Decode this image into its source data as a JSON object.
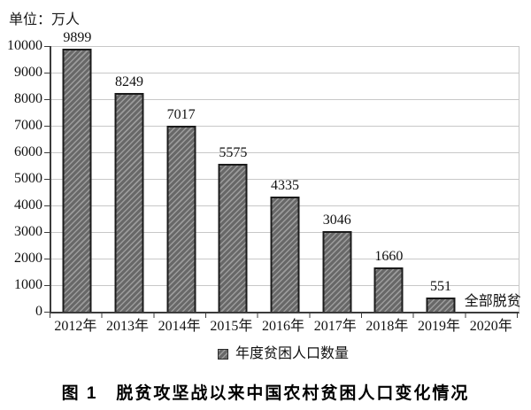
{
  "chart_data": {
    "type": "bar",
    "unit_label": "单位：万人",
    "caption": "图 1　脱贫攻坚战以来中国农村贫困人口变化情况",
    "categories": [
      "2012年",
      "2013年",
      "2014年",
      "2015年",
      "2016年",
      "2017年",
      "2018年",
      "2019年",
      "2020年"
    ],
    "values": [
      9899,
      8249,
      7017,
      5575,
      4335,
      3046,
      1660,
      551,
      0
    ],
    "value_labels": [
      "9899",
      "8249",
      "7017",
      "5575",
      "4335",
      "3046",
      "1660",
      "551",
      ""
    ],
    "final_annotation": "全部脱贫",
    "legend": [
      {
        "label": "年度贫困人口数量",
        "swatch": "hatched-dark-gray"
      }
    ],
    "legend_position": "bottom-center",
    "xlabel": "",
    "ylabel": "",
    "ylim": [
      0,
      10000
    ],
    "ytick_step": 1000,
    "yticks": [
      0,
      1000,
      2000,
      3000,
      4000,
      5000,
      6000,
      7000,
      8000,
      9000,
      10000
    ],
    "grid": "horizontal",
    "colors": {
      "bar_fill": "#686868",
      "bar_hatch": "#9e9e9e",
      "bar_border": "#1b1b1b",
      "gridline": "#c8c8c8",
      "axis": "#3c3c3c",
      "text": "#111111"
    }
  }
}
